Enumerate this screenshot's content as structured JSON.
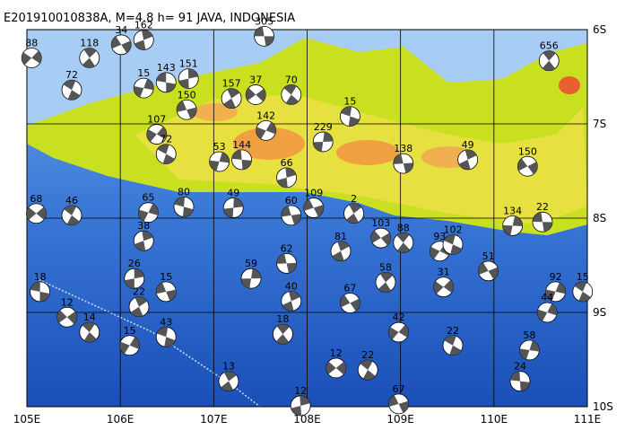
{
  "map": {
    "title": "E201910010838A, M=4.8 h= 91 JAVA, INDONESIA",
    "lonlim": [
      105,
      111
    ],
    "latlim": [
      6,
      10
    ],
    "lonticks": [
      {
        "value": 105,
        "label": "105E"
      },
      {
        "value": 106,
        "label": "106E"
      },
      {
        "value": 107,
        "label": "107E"
      },
      {
        "value": 108,
        "label": "108E"
      },
      {
        "value": 109,
        "label": "109E"
      },
      {
        "value": 110,
        "label": "110E"
      },
      {
        "value": 111,
        "label": "111E"
      }
    ],
    "latticks": [
      {
        "value": 6,
        "label": "6S"
      },
      {
        "value": 7,
        "label": "7S"
      },
      {
        "value": 8,
        "label": "8S"
      },
      {
        "value": 9,
        "label": "9S"
      },
      {
        "value": 10,
        "label": "10S"
      }
    ],
    "events": [
      {
        "lon": 107.54,
        "lat": 6.07,
        "depth": "305"
      },
      {
        "lon": 106.25,
        "lat": 6.11,
        "depth": "162"
      },
      {
        "lon": 106.01,
        "lat": 6.16,
        "depth": "34"
      },
      {
        "lon": 105.67,
        "lat": 6.3,
        "depth": "118"
      },
      {
        "lon": 105.05,
        "lat": 6.3,
        "depth": "88"
      },
      {
        "lon": 105.48,
        "lat": 6.64,
        "depth": "72"
      },
      {
        "lon": 106.25,
        "lat": 6.62,
        "depth": "15"
      },
      {
        "lon": 106.49,
        "lat": 6.56,
        "depth": "143"
      },
      {
        "lon": 106.73,
        "lat": 6.52,
        "depth": "151"
      },
      {
        "lon": 106.71,
        "lat": 6.85,
        "depth": "150"
      },
      {
        "lon": 107.19,
        "lat": 6.73,
        "depth": "157"
      },
      {
        "lon": 107.45,
        "lat": 6.69,
        "depth": "37"
      },
      {
        "lon": 107.83,
        "lat": 6.69,
        "depth": "70"
      },
      {
        "lon": 107.56,
        "lat": 7.07,
        "depth": "142"
      },
      {
        "lon": 108.46,
        "lat": 6.92,
        "depth": "15"
      },
      {
        "lon": 108.17,
        "lat": 7.19,
        "depth": "229"
      },
      {
        "lon": 109.03,
        "lat": 7.42,
        "depth": "138"
      },
      {
        "lon": 109.72,
        "lat": 7.38,
        "depth": "49"
      },
      {
        "lon": 110.36,
        "lat": 7.45,
        "depth": "150"
      },
      {
        "lon": 110.59,
        "lat": 6.33,
        "depth": "656"
      },
      {
        "lon": 106.39,
        "lat": 7.11,
        "depth": "107"
      },
      {
        "lon": 106.49,
        "lat": 7.32,
        "depth": "72"
      },
      {
        "lon": 107.06,
        "lat": 7.4,
        "depth": "53"
      },
      {
        "lon": 107.3,
        "lat": 7.38,
        "depth": "144"
      },
      {
        "lon": 107.78,
        "lat": 7.57,
        "depth": "66"
      },
      {
        "lon": 108.07,
        "lat": 7.89,
        "depth": "109"
      },
      {
        "lon": 108.5,
        "lat": 7.95,
        "depth": "2"
      },
      {
        "lon": 105.1,
        "lat": 7.95,
        "depth": "68"
      },
      {
        "lon": 105.48,
        "lat": 7.97,
        "depth": "46"
      },
      {
        "lon": 106.3,
        "lat": 7.94,
        "depth": "65"
      },
      {
        "lon": 106.68,
        "lat": 7.88,
        "depth": "80"
      },
      {
        "lon": 107.21,
        "lat": 7.89,
        "depth": "49"
      },
      {
        "lon": 107.83,
        "lat": 7.97,
        "depth": "60"
      },
      {
        "lon": 108.36,
        "lat": 8.35,
        "depth": "81"
      },
      {
        "lon": 108.79,
        "lat": 8.21,
        "depth": "103"
      },
      {
        "lon": 109.03,
        "lat": 8.26,
        "depth": "88"
      },
      {
        "lon": 109.42,
        "lat": 8.35,
        "depth": "93"
      },
      {
        "lon": 109.56,
        "lat": 8.28,
        "depth": "102"
      },
      {
        "lon": 110.2,
        "lat": 8.08,
        "depth": "134"
      },
      {
        "lon": 110.52,
        "lat": 8.04,
        "depth": "22"
      },
      {
        "lon": 106.25,
        "lat": 8.24,
        "depth": "38"
      },
      {
        "lon": 109.94,
        "lat": 8.56,
        "depth": "51"
      },
      {
        "lon": 108.84,
        "lat": 8.68,
        "depth": "58"
      },
      {
        "lon": 109.46,
        "lat": 8.73,
        "depth": "31"
      },
      {
        "lon": 110.95,
        "lat": 8.78,
        "depth": "15"
      },
      {
        "lon": 110.66,
        "lat": 8.78,
        "depth": "92"
      },
      {
        "lon": 105.14,
        "lat": 8.78,
        "depth": "18"
      },
      {
        "lon": 106.15,
        "lat": 8.64,
        "depth": "26"
      },
      {
        "lon": 106.49,
        "lat": 8.78,
        "depth": "15"
      },
      {
        "lon": 106.2,
        "lat": 8.94,
        "depth": "22"
      },
      {
        "lon": 105.43,
        "lat": 9.05,
        "depth": "12"
      },
      {
        "lon": 105.67,
        "lat": 9.21,
        "depth": "14"
      },
      {
        "lon": 106.1,
        "lat": 9.35,
        "depth": "15"
      },
      {
        "lon": 106.49,
        "lat": 9.26,
        "depth": "43"
      },
      {
        "lon": 107.4,
        "lat": 8.64,
        "depth": "59"
      },
      {
        "lon": 107.78,
        "lat": 8.48,
        "depth": "62"
      },
      {
        "lon": 107.83,
        "lat": 8.88,
        "depth": "40"
      },
      {
        "lon": 108.46,
        "lat": 8.9,
        "depth": "67"
      },
      {
        "lon": 107.74,
        "lat": 9.23,
        "depth": "18"
      },
      {
        "lon": 108.98,
        "lat": 9.21,
        "depth": "42"
      },
      {
        "lon": 109.56,
        "lat": 9.35,
        "depth": "22"
      },
      {
        "lon": 110.38,
        "lat": 9.4,
        "depth": "58"
      },
      {
        "lon": 110.28,
        "lat": 9.73,
        "depth": "24"
      },
      {
        "lon": 107.93,
        "lat": 9.99,
        "depth": "12"
      },
      {
        "lon": 108.98,
        "lat": 9.97,
        "depth": "67"
      },
      {
        "lon": 107.16,
        "lat": 9.73,
        "depth": "13"
      },
      {
        "lon": 108.31,
        "lat": 9.59,
        "depth": "12"
      },
      {
        "lon": 108.65,
        "lat": 9.61,
        "depth": "22"
      },
      {
        "lon": 110.57,
        "lat": 9.0,
        "depth": "44"
      }
    ]
  }
}
